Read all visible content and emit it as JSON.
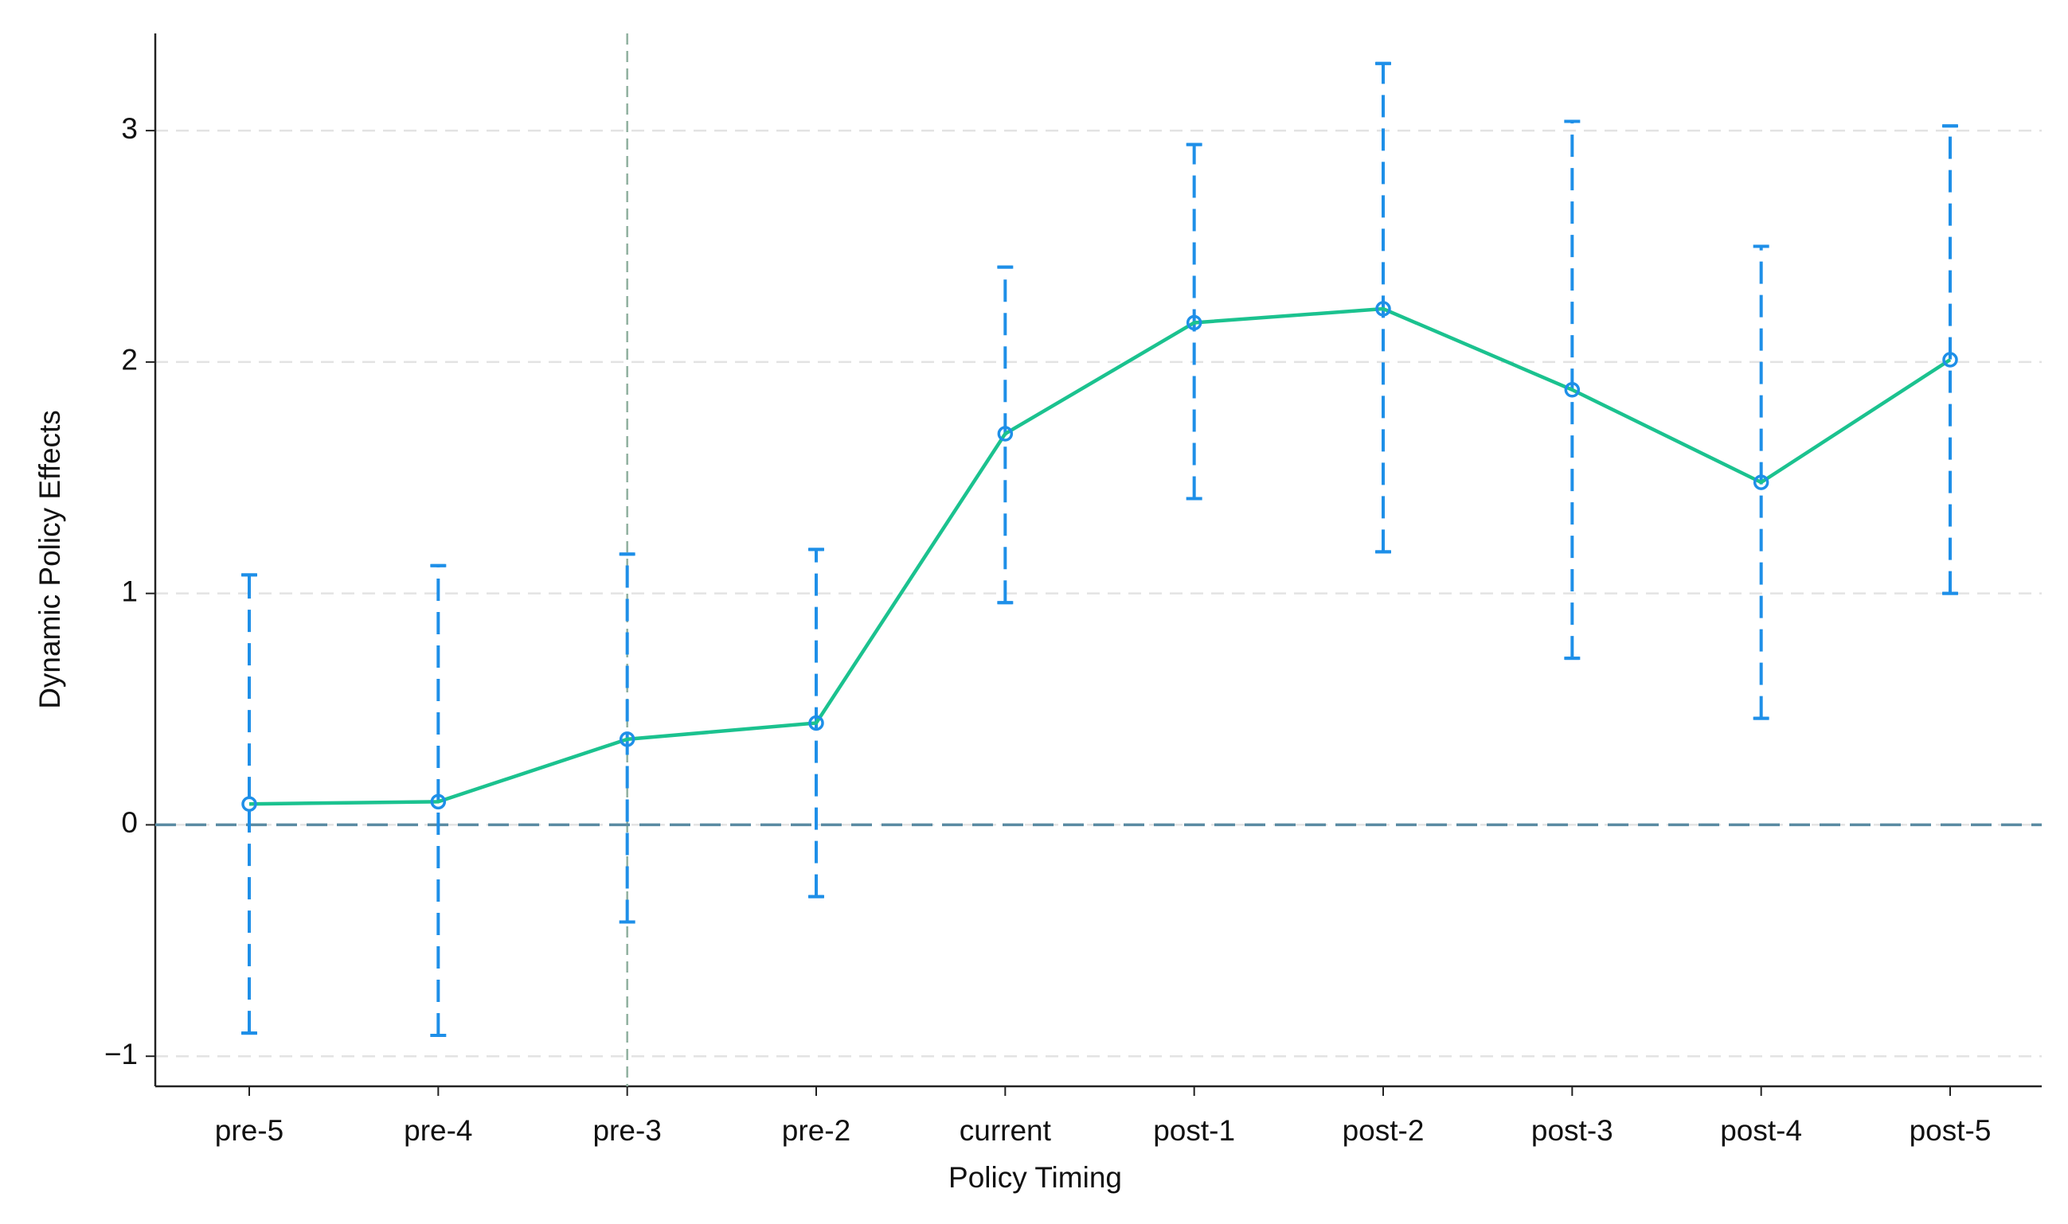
{
  "chart_data": {
    "type": "line_errorbar",
    "x_label": "Policy Timing",
    "y_label": "Dynamic Policy Effects",
    "categories": [
      "pre-5",
      "pre-4",
      "pre-3",
      "pre-2",
      "current",
      "post-1",
      "post-2",
      "post-3",
      "post-4",
      "post-5"
    ],
    "series": [
      {
        "color": "#1bc28f",
        "marker_color": "#1e8fe8",
        "values": [
          0.09,
          0.1,
          0.37,
          0.44,
          1.69,
          2.17,
          2.23,
          1.88,
          1.48,
          2.01
        ],
        "lower": [
          -0.9,
          -0.91,
          -0.42,
          -0.31,
          0.96,
          1.41,
          1.18,
          0.72,
          0.46,
          1.0
        ],
        "upper": [
          1.08,
          1.12,
          1.17,
          1.19,
          2.41,
          2.94,
          3.29,
          3.04,
          2.5,
          3.02
        ],
        "error_color": "#1e8fe8"
      }
    ],
    "ylim": [
      -1.13,
      3.42
    ],
    "yticks": [
      {
        "value": -1,
        "label": "−1"
      },
      0,
      1,
      2,
      3
    ],
    "grid": true,
    "reference_y": 0,
    "reference_x": "pre-3"
  }
}
